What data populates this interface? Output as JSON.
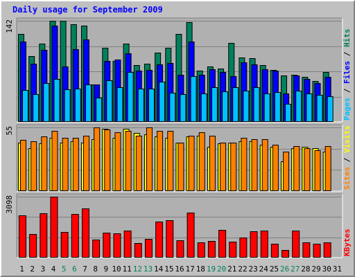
{
  "title": "Daily usage for September 2009",
  "colors": {
    "background": "#c0c0c0",
    "panel": "#b0b0b0",
    "hits": "#00805c",
    "files": "#0000ff",
    "pages": "#00c0ff",
    "visits": "#ffff00",
    "sites": "#ff8000",
    "kbytes": "#ff0000",
    "title": "#0000ff",
    "weekend": "#00805c"
  },
  "chart_data": [
    {
      "type": "bar",
      "title": "Daily usage for September 2009",
      "categories": [
        "1",
        "2",
        "3",
        "4",
        "5",
        "6",
        "7",
        "8",
        "9",
        "10",
        "11",
        "12",
        "13",
        "14",
        "15",
        "16",
        "17",
        "18",
        "19",
        "20",
        "21",
        "22",
        "23",
        "24",
        "25",
        "26",
        "27",
        "28",
        "29",
        "30",
        "31"
      ],
      "weekend_days": [
        5,
        6,
        12,
        13,
        19,
        20,
        26,
        27
      ],
      "ymax_label": "142",
      "ylim": [
        0,
        142
      ],
      "legend": [
        "Hits",
        "Files",
        "Pages"
      ],
      "legend_separator": " / ",
      "series": [
        {
          "name": "Hits",
          "values": [
            124,
            92,
            110,
            142,
            142,
            137,
            135,
            53,
            104,
            86,
            110,
            80,
            82,
            97,
            104,
            124,
            140,
            72,
            78,
            75,
            111,
            90,
            89,
            80,
            73,
            65,
            66,
            63,
            57,
            70,
            0
          ]
        },
        {
          "name": "Files",
          "values": [
            113,
            82,
            101,
            135,
            78,
            102,
            116,
            53,
            86,
            88,
            96,
            72,
            73,
            81,
            83,
            66,
            113,
            66,
            74,
            70,
            64,
            84,
            81,
            74,
            72,
            40,
            65,
            60,
            54,
            63,
            0
          ]
        },
        {
          "name": "Pages",
          "values": [
            45,
            39,
            54,
            60,
            46,
            47,
            53,
            34,
            58,
            49,
            70,
            47,
            47,
            56,
            41,
            39,
            64,
            40,
            49,
            43,
            49,
            44,
            49,
            40,
            42,
            25,
            44,
            40,
            38,
            36,
            0
          ]
        }
      ]
    },
    {
      "type": "bar",
      "categories": [
        "1",
        "2",
        "3",
        "4",
        "5",
        "6",
        "7",
        "8",
        "9",
        "10",
        "11",
        "12",
        "13",
        "14",
        "15",
        "16",
        "17",
        "18",
        "19",
        "20",
        "21",
        "22",
        "23",
        "24",
        "25",
        "26",
        "27",
        "28",
        "29",
        "30",
        "31"
      ],
      "ymax_label": "55",
      "ylim": [
        0,
        55
      ],
      "legend": [
        "Sites",
        "Visits"
      ],
      "legend_separator": " / ",
      "series": [
        {
          "name": "Visits",
          "values": [
            42,
            37,
            41,
            46,
            42,
            43,
            42,
            45,
            54,
            46,
            54,
            50,
            49,
            47,
            46,
            42,
            47,
            48,
            38,
            41,
            42,
            43,
            43,
            40,
            38,
            26,
            37,
            38,
            37,
            34,
            0
          ]
        },
        {
          "name": "Sites",
          "values": [
            44,
            43,
            47,
            52,
            46,
            46,
            48,
            55,
            53,
            51,
            52,
            48,
            55,
            52,
            52,
            42,
            48,
            51,
            48,
            42,
            42,
            46,
            45,
            45,
            40,
            34,
            39,
            37,
            35,
            39,
            0
          ]
        }
      ]
    },
    {
      "type": "bar",
      "categories": [
        "1",
        "2",
        "3",
        "4",
        "5",
        "6",
        "7",
        "8",
        "9",
        "10",
        "11",
        "12",
        "13",
        "14",
        "15",
        "16",
        "17",
        "18",
        "19",
        "20",
        "21",
        "22",
        "23",
        "24",
        "25",
        "26",
        "27",
        "28",
        "29",
        "30",
        "31"
      ],
      "ymax_label": "3098",
      "ylim": [
        0,
        3098
      ],
      "legend": [
        "KBytes"
      ],
      "series": [
        {
          "name": "KBytes",
          "values": [
            2140,
            1192,
            2267,
            3098,
            1288,
            2228,
            2506,
            898,
            1260,
            1239,
            1385,
            742,
            953,
            1833,
            1889,
            875,
            2298,
            778,
            845,
            1399,
            819,
            1036,
            1355,
            1367,
            705,
            372,
            1373,
            788,
            697,
            789,
            0
          ]
        }
      ]
    }
  ]
}
